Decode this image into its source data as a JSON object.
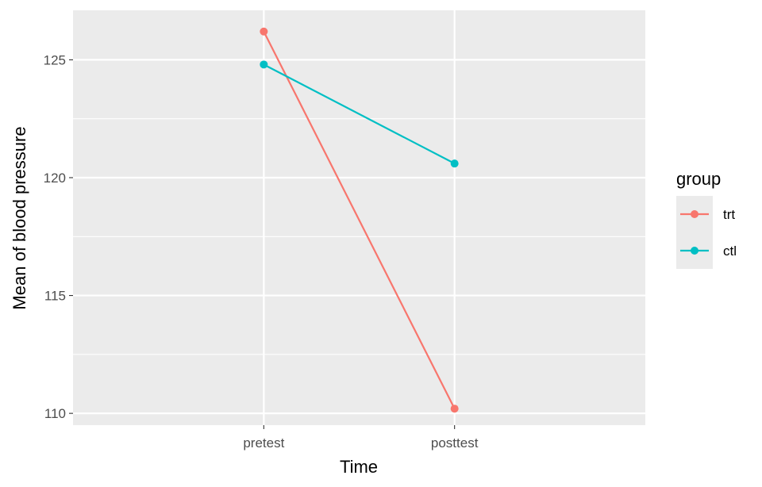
{
  "chart_data": {
    "type": "line",
    "xlabel": "Time",
    "ylabel": "Mean of blood pressure",
    "categories": [
      "pretest",
      "posttest"
    ],
    "ylim": [
      109.5,
      127.1
    ],
    "yticks": [
      110,
      115,
      120,
      125
    ],
    "ytick_labels": [
      "110",
      "115",
      "120",
      "125"
    ],
    "grid": true,
    "legend": {
      "title": "group",
      "placement": "right"
    },
    "series": [
      {
        "name": "trt",
        "color": "#F8766D",
        "values": [
          126.2,
          110.2
        ]
      },
      {
        "name": "ctl",
        "color": "#00BFC4",
        "values": [
          124.8,
          120.6
        ]
      }
    ]
  }
}
